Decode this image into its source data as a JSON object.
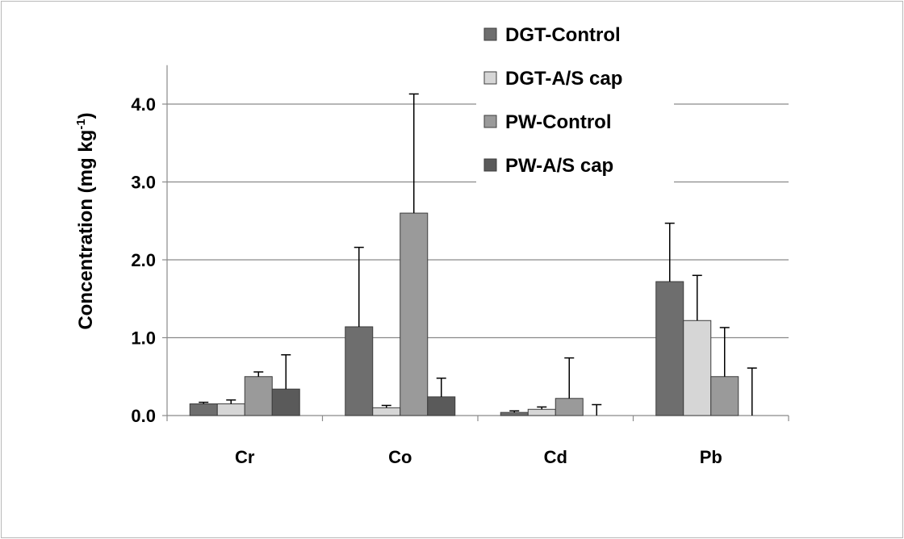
{
  "chart_data": {
    "type": "bar",
    "title": "",
    "xlabel": "",
    "ylabel": "Concentration (mg kg",
    "ylabel_superscript": "-1",
    "ylabel_close": ")",
    "categories": [
      "Cr",
      "Co",
      "Cd",
      "Pb"
    ],
    "ylim": [
      0,
      4.5
    ],
    "yticks": [
      0.0,
      1.0,
      2.0,
      3.0,
      4.0
    ],
    "ytick_labels": [
      "0.0",
      "1.0",
      "2.0",
      "3.0",
      "4.0"
    ],
    "grid": true,
    "legend_position": "top-right",
    "series": [
      {
        "name": "DGT-Control",
        "color": "#6e6e6e",
        "values": [
          0.15,
          1.14,
          0.04,
          1.72
        ],
        "errors": [
          0.02,
          1.02,
          0.02,
          0.75
        ]
      },
      {
        "name": "DGT-A/S cap",
        "color": "#d6d6d6",
        "values": [
          0.15,
          0.1,
          0.08,
          1.22
        ],
        "errors": [
          0.05,
          0.03,
          0.03,
          0.58
        ]
      },
      {
        "name": "PW-Control",
        "color": "#9a9a9a",
        "values": [
          0.5,
          2.6,
          0.22,
          0.5
        ],
        "errors": [
          0.06,
          1.53,
          0.52,
          0.63
        ]
      },
      {
        "name": "PW-A/S cap",
        "color": "#5a5a5a",
        "values": [
          0.34,
          0.24,
          0.0,
          0.0
        ],
        "errors": [
          0.44,
          0.24,
          0.14,
          0.61
        ]
      }
    ]
  }
}
